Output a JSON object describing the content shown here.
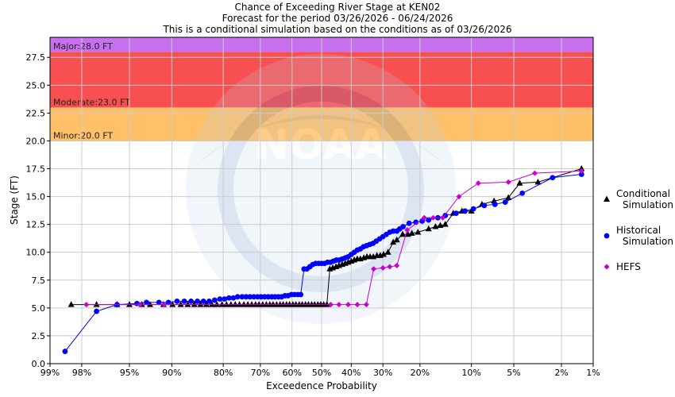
{
  "titles": {
    "line1": "Chance of Exceeding River Stage at KEN02",
    "line2": "Forecast for the period 03/26/2026 - 06/24/2026",
    "line3": "This is a conditional simulation based on the conditions as of 03/26/2026"
  },
  "watermark": "NOAA",
  "chart_data": {
    "type": "scatter",
    "title": "Chance of Exceeding River Stage at KEN02",
    "xlabel": "Exceedence Probability",
    "ylabel": "Stage (FT)",
    "ylim": [
      0,
      29.3
    ],
    "xlim_percent": [
      99,
      1
    ],
    "x_scale": "normal-probability",
    "grid": true,
    "legend_position": "right",
    "x_ticks": [
      {
        "p": 99,
        "label": "99%"
      },
      {
        "p": 98,
        "label": "98%"
      },
      {
        "p": 95,
        "label": "95%"
      },
      {
        "p": 90,
        "label": "90%"
      },
      {
        "p": 80,
        "label": "80%"
      },
      {
        "p": 70,
        "label": "70%"
      },
      {
        "p": 60,
        "label": "60%"
      },
      {
        "p": 50,
        "label": "50%"
      },
      {
        "p": 40,
        "label": "40%"
      },
      {
        "p": 30,
        "label": "30%"
      },
      {
        "p": 20,
        "label": "20%"
      },
      {
        "p": 10,
        "label": "10%"
      },
      {
        "p": 5,
        "label": "5%"
      },
      {
        "p": 2,
        "label": "2%"
      },
      {
        "p": 1,
        "label": "1%"
      }
    ],
    "y_ticks": [
      {
        "v": 0,
        "label": "0.0"
      },
      {
        "v": 2.5,
        "label": "2.5"
      },
      {
        "v": 5,
        "label": "5.0"
      },
      {
        "v": 7.5,
        "label": "7.5"
      },
      {
        "v": 10,
        "label": "10.0"
      },
      {
        "v": 12.5,
        "label": "12.5"
      },
      {
        "v": 15,
        "label": "15.0"
      },
      {
        "v": 17.5,
        "label": "17.5"
      },
      {
        "v": 20,
        "label": "20.0"
      },
      {
        "v": 22.5,
        "label": "22.5"
      },
      {
        "v": 25,
        "label": "25.0"
      },
      {
        "v": 27.5,
        "label": "27.5"
      }
    ],
    "flood_bands": [
      {
        "name": "Minor",
        "label": "Minor:20.0 FT",
        "from": 20.0,
        "to": 23.0,
        "color": "#ffc067"
      },
      {
        "name": "Moderate",
        "label": "Moderate:23.0 FT",
        "from": 23.0,
        "to": 28.0,
        "color": "#f85050"
      },
      {
        "name": "Major",
        "label": "Major:28.0 FT",
        "from": 28.0,
        "to": 29.3,
        "color": "#c86ff0"
      }
    ],
    "series": [
      {
        "name": "Conditional Simulation",
        "legend_lines": [
          "Conditional",
          "Simulation"
        ],
        "marker": "triangle",
        "color": "#000000",
        "points": [
          [
            98.4,
            5.3
          ],
          [
            97.3,
            5.3
          ],
          [
            96,
            5.3
          ],
          [
            95,
            5.3
          ],
          [
            93.8,
            5.3
          ],
          [
            92.9,
            5.3
          ],
          [
            91.2,
            5.3
          ],
          [
            89.9,
            5.3
          ],
          [
            88.6,
            5.3
          ],
          [
            87.4,
            5.3
          ],
          [
            86.2,
            5.3
          ],
          [
            85,
            5.3
          ],
          [
            83.8,
            5.3
          ],
          [
            82.6,
            5.3
          ],
          [
            81.5,
            5.3
          ],
          [
            80.3,
            5.3
          ],
          [
            79.2,
            5.3
          ],
          [
            78.1,
            5.3
          ],
          [
            77,
            5.3
          ],
          [
            75.9,
            5.3
          ],
          [
            74.7,
            5.3
          ],
          [
            73.6,
            5.3
          ],
          [
            72.5,
            5.3
          ],
          [
            71.4,
            5.3
          ],
          [
            70.4,
            5.3
          ],
          [
            69.3,
            5.3
          ],
          [
            68.2,
            5.3
          ],
          [
            67.1,
            5.3
          ],
          [
            66.1,
            5.3
          ],
          [
            65,
            5.3
          ],
          [
            63.9,
            5.3
          ],
          [
            62.9,
            5.3
          ],
          [
            61.8,
            5.3
          ],
          [
            60.8,
            5.3
          ],
          [
            59.7,
            5.3
          ],
          [
            58.7,
            5.3
          ],
          [
            57.6,
            5.3
          ],
          [
            56.6,
            5.3
          ],
          [
            55.5,
            5.3
          ],
          [
            54.5,
            5.3
          ],
          [
            53.4,
            5.3
          ],
          [
            52.4,
            5.3
          ],
          [
            51.3,
            5.3
          ],
          [
            50.3,
            5.3
          ],
          [
            49.3,
            5.3
          ],
          [
            48.2,
            5.3
          ],
          [
            47.2,
            8.5
          ],
          [
            46.2,
            8.6
          ],
          [
            45.1,
            8.7
          ],
          [
            44.1,
            8.8
          ],
          [
            43,
            8.9
          ],
          [
            42,
            9.0
          ],
          [
            41,
            9.1
          ],
          [
            40,
            9.2
          ],
          [
            39,
            9.3
          ],
          [
            38,
            9.4
          ],
          [
            37,
            9.4
          ],
          [
            35.9,
            9.5
          ],
          [
            34.9,
            9.6
          ],
          [
            33.9,
            9.6
          ],
          [
            32.9,
            9.6
          ],
          [
            31.8,
            9.7
          ],
          [
            30.8,
            9.7
          ],
          [
            29.8,
            9.8
          ],
          [
            28.5,
            10.0
          ],
          [
            27,
            10.9
          ],
          [
            26,
            11.1
          ],
          [
            24.4,
            11.6
          ],
          [
            23,
            11.6
          ],
          [
            22,
            11.7
          ],
          [
            20.5,
            11.8
          ],
          [
            18,
            12.1
          ],
          [
            16.5,
            12.3
          ],
          [
            15.5,
            12.4
          ],
          [
            14.5,
            12.5
          ],
          [
            13,
            13.5
          ],
          [
            11.5,
            13.7
          ],
          [
            10,
            13.7
          ],
          [
            8.5,
            14.3
          ],
          [
            7,
            14.6
          ],
          [
            5.5,
            14.9
          ],
          [
            4.5,
            16.2
          ],
          [
            3.2,
            16.3
          ],
          [
            1.3,
            17.5
          ]
        ]
      },
      {
        "name": "Historical Simulation",
        "legend_lines": [
          "Historical",
          "Simulation"
        ],
        "marker": "circle",
        "color": "#0000ff",
        "points": [
          [
            98.6,
            1.1
          ],
          [
            97.3,
            4.7
          ],
          [
            96,
            5.3
          ],
          [
            94.3,
            5.4
          ],
          [
            93.3,
            5.5
          ],
          [
            91.8,
            5.5
          ],
          [
            90.5,
            5.5
          ],
          [
            89.2,
            5.6
          ],
          [
            88,
            5.6
          ],
          [
            86.8,
            5.6
          ],
          [
            85.6,
            5.6
          ],
          [
            84.4,
            5.6
          ],
          [
            83.2,
            5.6
          ],
          [
            82,
            5.7
          ],
          [
            80.8,
            5.8
          ],
          [
            79.7,
            5.8
          ],
          [
            78.6,
            5.9
          ],
          [
            77.5,
            5.9
          ],
          [
            76.4,
            6.0
          ],
          [
            75.2,
            6.0
          ],
          [
            74.1,
            6.0
          ],
          [
            73,
            6.0
          ],
          [
            71.9,
            6.0
          ],
          [
            70.8,
            6.0
          ],
          [
            69.8,
            6.0
          ],
          [
            68.7,
            6.0
          ],
          [
            67.6,
            6.0
          ],
          [
            66.5,
            6.0
          ],
          [
            65.5,
            6.0
          ],
          [
            64.4,
            6.0
          ],
          [
            63.4,
            6.0
          ],
          [
            62.3,
            6.1
          ],
          [
            61.3,
            6.1
          ],
          [
            60.2,
            6.2
          ],
          [
            59.2,
            6.2
          ],
          [
            58.1,
            6.2
          ],
          [
            57.1,
            6.2
          ],
          [
            56,
            8.5
          ],
          [
            55,
            8.5
          ],
          [
            54,
            8.7
          ],
          [
            53,
            8.9
          ],
          [
            52,
            9.0
          ],
          [
            51,
            9.0
          ],
          [
            50,
            9.0
          ],
          [
            49,
            9.0
          ],
          [
            48,
            9.1
          ],
          [
            47,
            9.1
          ],
          [
            46,
            9.2
          ],
          [
            45,
            9.3
          ],
          [
            44,
            9.3
          ],
          [
            43,
            9.4
          ],
          [
            42,
            9.5
          ],
          [
            41,
            9.6
          ],
          [
            40,
            9.8
          ],
          [
            39,
            10.0
          ],
          [
            38,
            10.2
          ],
          [
            37,
            10.3
          ],
          [
            36,
            10.5
          ],
          [
            35,
            10.6
          ],
          [
            34,
            10.7
          ],
          [
            33,
            10.8
          ],
          [
            32,
            11.0
          ],
          [
            31,
            11.2
          ],
          [
            30,
            11.4
          ],
          [
            29,
            11.6
          ],
          [
            28,
            11.8
          ],
          [
            27,
            11.9
          ],
          [
            26,
            11.9
          ],
          [
            25.2,
            12.1
          ],
          [
            24.3,
            12.3
          ],
          [
            22.7,
            12.6
          ],
          [
            21,
            12.7
          ],
          [
            19.5,
            12.8
          ],
          [
            18,
            12.9
          ],
          [
            16,
            13.1
          ],
          [
            14.5,
            13.3
          ],
          [
            12.5,
            13.5
          ],
          [
            11,
            13.7
          ],
          [
            9.7,
            13.9
          ],
          [
            8.2,
            14.2
          ],
          [
            6.9,
            14.3
          ],
          [
            5.8,
            14.5
          ],
          [
            4.3,
            15.3
          ],
          [
            2.4,
            16.7
          ],
          [
            1.3,
            17.0
          ]
        ]
      },
      {
        "name": "HEFS",
        "legend_lines": [
          "HEFS"
        ],
        "marker": "diamond",
        "color": "#cc00cc",
        "points": [
          [
            97.8,
            5.3
          ],
          [
            94,
            5.3
          ],
          [
            91.1,
            5.3
          ],
          [
            46.9,
            5.3
          ],
          [
            44.1,
            5.3
          ],
          [
            41,
            5.3
          ],
          [
            38,
            5.3
          ],
          [
            35.1,
            5.3
          ],
          [
            32.8,
            8.5
          ],
          [
            30,
            8.6
          ],
          [
            28,
            8.7
          ],
          [
            26,
            8.8
          ],
          [
            23.2,
            12.0
          ],
          [
            19,
            13.1
          ],
          [
            17,
            13.1
          ],
          [
            15,
            13.1
          ],
          [
            12,
            15.0
          ],
          [
            9,
            16.2
          ],
          [
            5.5,
            16.3
          ],
          [
            3.4,
            17.1
          ],
          [
            1.3,
            17.3
          ]
        ]
      }
    ]
  }
}
